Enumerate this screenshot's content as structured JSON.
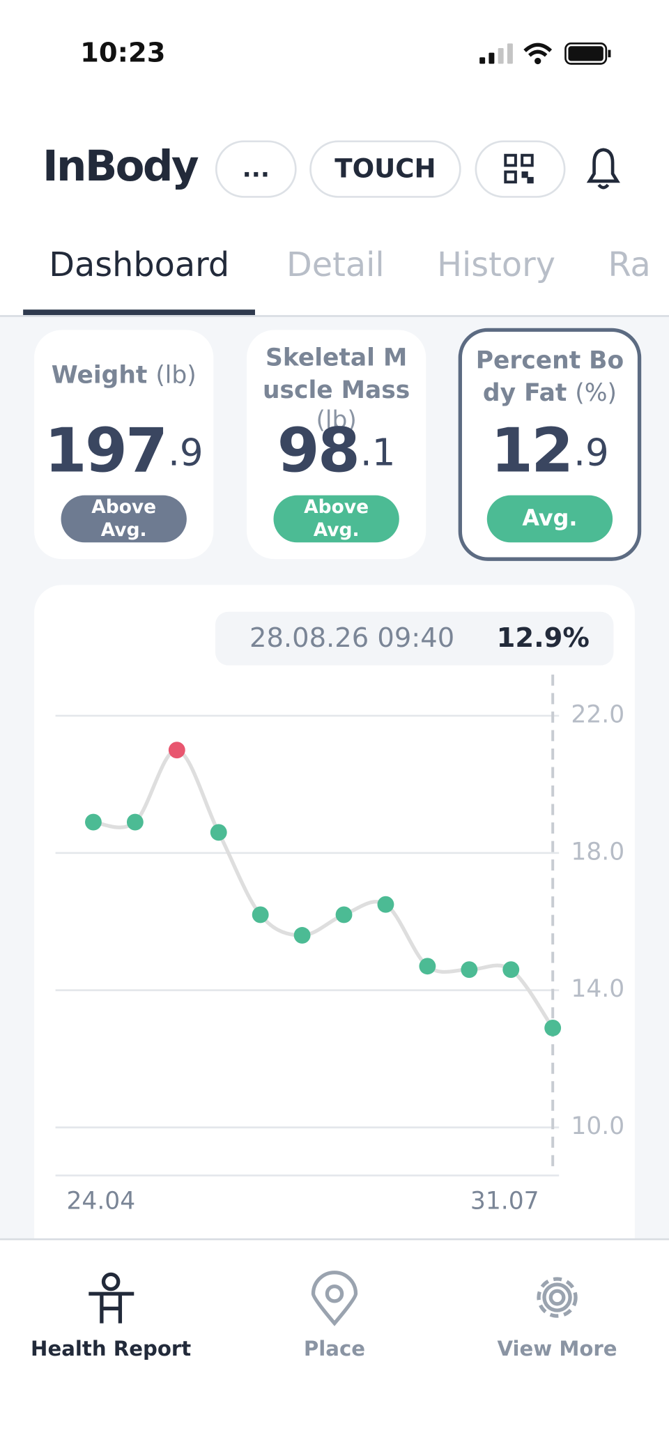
{
  "status_bar": {
    "time": "10:23"
  },
  "header": {
    "logo": "InBody",
    "buttons": [
      "...",
      "TOUCH"
    ]
  },
  "tabs": [
    "Dashboard",
    "Detail",
    "History",
    "Ra"
  ],
  "cards": [
    {
      "title_lines": [
        "Weight"
      ],
      "unit": "(lb)",
      "value_int": "197",
      "value_dec": ".9",
      "badge_lines": [
        "Above",
        "Avg."
      ],
      "badge_color": "#6e7b91"
    },
    {
      "title_lines": [
        "Skeletal M",
        "uscle Mass"
      ],
      "unit": "(lb)",
      "value_int": "98",
      "value_dec": ".1",
      "badge_lines": [
        "Above",
        "Avg."
      ],
      "badge_color": "#4cbb94"
    },
    {
      "title_lines": [
        "Percent Bo",
        "dy Fat"
      ],
      "unit": "(%)",
      "value_int": "12",
      "value_dec": ".9",
      "badge_lines": [
        "Avg."
      ],
      "badge_color": "#4cbb94"
    }
  ],
  "chart_data": {
    "type": "line",
    "tooltip": {
      "date": "28.08.26 09:40",
      "value": "12.9%"
    },
    "categories": [
      "24.04",
      null,
      null,
      null,
      null,
      null,
      null,
      null,
      null,
      null,
      "31.07",
      null
    ],
    "values": [
      18.9,
      18.9,
      21.0,
      18.6,
      16.2,
      15.6,
      16.2,
      16.5,
      14.7,
      14.6,
      14.6,
      12.9
    ],
    "color": "#4cbb94",
    "peak_color": "#e8566f",
    "line_color": "#dedede",
    "ylim": [
      8.6,
      23.2
    ],
    "yticks": [
      {
        "value": 10,
        "label": "10.0"
      },
      {
        "value": 14,
        "label": "14.0"
      },
      {
        "value": 18,
        "label": "18.0"
      },
      {
        "value": 22,
        "label": "22.0"
      }
    ],
    "grid": true
  },
  "nav": [
    "Health Report",
    "Place",
    "View More"
  ]
}
